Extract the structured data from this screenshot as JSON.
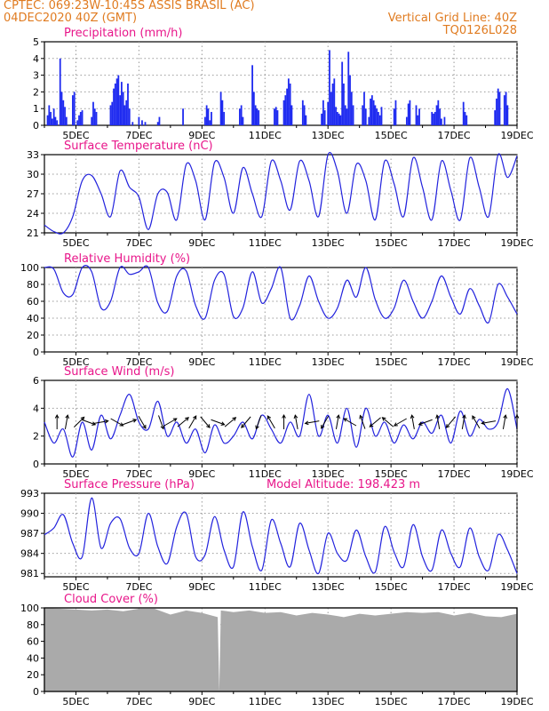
{
  "header": {
    "line1_left": "CPTEC:   069:23W-10:45S   ASSIS BRASIL (AC)",
    "line2_left": "04DEC2020 40Z (GMT)",
    "line2_right": "Vertical Grid Line: 40Z",
    "line3_right": "TQ0126L028"
  },
  "colors": {
    "header": "#e07b20",
    "title": "#e8168a",
    "line": "#2222dd",
    "bar": "#1f2bf0",
    "cloud": "#aaaaaa",
    "arrow": "#000000"
  },
  "x_axis": {
    "start_day": 4,
    "end_day": 19,
    "tick_labels": [
      "5DEC",
      "7DEC",
      "9DEC",
      "11DEC",
      "13DEC",
      "15DEC",
      "17DEC",
      "19DEC"
    ],
    "tick_days": [
      5,
      7,
      9,
      11,
      13,
      15,
      17,
      19
    ]
  },
  "chart_data": [
    {
      "id": "precip",
      "type": "bar",
      "title": "Precipitation (mm/h)",
      "ylim": [
        0,
        5
      ],
      "yticks": [
        "0",
        "1",
        "2",
        "3",
        "4",
        "5"
      ],
      "x": [
        4.1,
        4.15,
        4.2,
        4.25,
        4.3,
        4.35,
        4.4,
        4.5,
        4.55,
        4.6,
        4.65,
        4.7,
        4.9,
        4.95,
        5.05,
        5.1,
        5.15,
        5.2,
        5.5,
        5.55,
        5.6,
        5.65,
        6.1,
        6.15,
        6.2,
        6.25,
        6.3,
        6.35,
        6.4,
        6.45,
        6.5,
        6.55,
        6.6,
        6.65,
        6.7,
        6.8,
        7.0,
        7.1,
        7.2,
        7.6,
        7.65,
        8.4,
        9.1,
        9.15,
        9.2,
        9.25,
        9.3,
        9.6,
        9.65,
        9.7,
        10.2,
        10.25,
        10.3,
        10.6,
        10.65,
        10.7,
        10.75,
        10.8,
        11.3,
        11.35,
        11.4,
        11.6,
        11.65,
        11.7,
        11.75,
        11.8,
        11.85,
        12.2,
        12.25,
        12.3,
        12.8,
        12.85,
        12.9,
        13.0,
        13.05,
        13.1,
        13.15,
        13.2,
        13.25,
        13.3,
        13.35,
        13.4,
        13.45,
        13.5,
        13.55,
        13.6,
        13.65,
        13.7,
        13.75,
        13.8,
        14.1,
        14.15,
        14.2,
        14.3,
        14.35,
        14.4,
        14.45,
        14.5,
        14.55,
        14.6,
        14.65,
        14.7,
        15.1,
        15.15,
        15.5,
        15.55,
        15.6,
        15.8,
        15.85,
        15.9,
        16.3,
        16.35,
        16.4,
        16.45,
        16.5,
        16.55,
        16.6,
        16.7,
        17.3,
        17.35,
        17.4,
        18.3,
        18.35,
        18.4,
        18.45,
        18.6,
        18.65,
        18.7
      ],
      "values": [
        0.6,
        1.2,
        0.8,
        0.4,
        1.0,
        0.5,
        0.3,
        4.0,
        2.0,
        1.5,
        1.1,
        0.5,
        1.8,
        2.0,
        0.3,
        0.6,
        0.8,
        0.9,
        0.5,
        1.4,
        1.0,
        0.8,
        1.2,
        1.4,
        2.2,
        2.5,
        2.8,
        3.0,
        1.8,
        2.6,
        2.0,
        1.2,
        1.5,
        2.5,
        1.0,
        0.2,
        0.5,
        0.3,
        0.2,
        0.2,
        0.5,
        1.0,
        0.5,
        1.2,
        1.0,
        0.3,
        0.8,
        2.0,
        1.5,
        0.8,
        1.0,
        1.2,
        0.5,
        3.6,
        2.0,
        1.2,
        1.0,
        0.9,
        1.0,
        1.1,
        0.9,
        1.5,
        1.8,
        2.2,
        2.8,
        2.5,
        1.2,
        1.5,
        1.2,
        0.6,
        0.7,
        1.5,
        0.9,
        1.4,
        4.5,
        2.0,
        2.5,
        2.8,
        1.1,
        0.8,
        0.7,
        0.6,
        3.8,
        2.5,
        1.2,
        1.0,
        4.4,
        3.0,
        2.0,
        1.2,
        1.2,
        2.0,
        1.0,
        0.5,
        1.6,
        1.8,
        1.5,
        1.2,
        1.0,
        0.8,
        0.6,
        1.1,
        1.0,
        1.5,
        0.5,
        1.3,
        1.5,
        1.2,
        0.6,
        1.0,
        0.8,
        0.7,
        0.8,
        1.2,
        1.5,
        1.0,
        0.4,
        0.5,
        1.4,
        0.8,
        0.6,
        0.9,
        1.6,
        2.2,
        2.0,
        1.8,
        2.0,
        1.2
      ]
    },
    {
      "id": "temp",
      "type": "line",
      "title": "Surface Temperature (nC)",
      "ylim": [
        21,
        33
      ],
      "yticks": [
        "21",
        "24",
        "27",
        "30",
        "33"
      ],
      "x": [
        4.0,
        4.3,
        4.6,
        4.9,
        5.2,
        5.5,
        5.8,
        6.1,
        6.4,
        6.7,
        7.0,
        7.3,
        7.6,
        7.9,
        8.2,
        8.5,
        8.8,
        9.1,
        9.4,
        9.7,
        10.0,
        10.3,
        10.6,
        10.9,
        11.2,
        11.5,
        11.8,
        12.1,
        12.4,
        12.7,
        13.0,
        13.3,
        13.6,
        13.9,
        14.2,
        14.5,
        14.8,
        15.1,
        15.4,
        15.7,
        16.0,
        16.3,
        16.6,
        16.9,
        17.2,
        17.5,
        17.8,
        18.1,
        18.4,
        18.7,
        19.0
      ],
      "values": [
        22.2,
        21.2,
        21.0,
        23.5,
        29.0,
        29.8,
        27.0,
        23.5,
        30.5,
        28.0,
        26.5,
        21.5,
        27.0,
        27.2,
        23.0,
        31.5,
        29.0,
        23.0,
        31.8,
        29.5,
        24.0,
        31.0,
        27.0,
        23.5,
        32.0,
        29.0,
        24.5,
        32.0,
        29.0,
        23.5,
        33.0,
        30.5,
        24.0,
        31.5,
        29.0,
        23.0,
        32.0,
        28.5,
        23.5,
        32.5,
        28.0,
        23.0,
        32.0,
        27.5,
        23.0,
        32.5,
        28.0,
        23.5,
        33.0,
        29.5,
        32.8
      ]
    },
    {
      "id": "rh",
      "type": "line",
      "title": "Relative Humidity (%)",
      "ylim": [
        0,
        100
      ],
      "yticks": [
        "0",
        "20",
        "40",
        "60",
        "80",
        "100"
      ],
      "x": [
        4.0,
        4.3,
        4.6,
        4.9,
        5.2,
        5.5,
        5.8,
        6.1,
        6.4,
        6.7,
        7.0,
        7.3,
        7.6,
        7.9,
        8.2,
        8.5,
        8.8,
        9.1,
        9.4,
        9.7,
        10.0,
        10.3,
        10.6,
        10.9,
        11.2,
        11.5,
        11.8,
        12.1,
        12.4,
        12.7,
        13.0,
        13.3,
        13.6,
        13.9,
        14.2,
        14.5,
        14.8,
        15.1,
        15.4,
        15.7,
        16.0,
        16.3,
        16.6,
        16.9,
        17.2,
        17.5,
        17.8,
        18.1,
        18.4,
        18.7,
        19.0
      ],
      "values": [
        100,
        98,
        70,
        68,
        100,
        95,
        52,
        60,
        100,
        92,
        95,
        100,
        58,
        48,
        90,
        96,
        55,
        40,
        85,
        92,
        42,
        52,
        95,
        58,
        75,
        100,
        40,
        55,
        90,
        60,
        40,
        52,
        85,
        65,
        100,
        62,
        40,
        52,
        85,
        60,
        40,
        60,
        90,
        65,
        45,
        75,
        55,
        35,
        80,
        65,
        45
      ]
    },
    {
      "id": "wind",
      "type": "line",
      "title": "Surface Wind (m/s)",
      "ylim": [
        0,
        6
      ],
      "yticks": [
        "0",
        "2",
        "4",
        "6"
      ],
      "x": [
        4.0,
        4.3,
        4.6,
        4.9,
        5.2,
        5.5,
        5.8,
        6.1,
        6.4,
        6.7,
        7.0,
        7.3,
        7.6,
        7.9,
        8.2,
        8.5,
        8.8,
        9.1,
        9.4,
        9.7,
        10.0,
        10.3,
        10.6,
        10.9,
        11.2,
        11.5,
        11.8,
        12.1,
        12.4,
        12.7,
        13.0,
        13.3,
        13.6,
        13.9,
        14.2,
        14.5,
        14.8,
        15.1,
        15.4,
        15.7,
        16.0,
        16.3,
        16.6,
        16.9,
        17.2,
        17.5,
        17.8,
        18.1,
        18.4,
        18.7,
        19.0
      ],
      "values": [
        3.0,
        1.5,
        2.5,
        0.5,
        3.0,
        1.0,
        3.5,
        1.8,
        3.5,
        5.0,
        3.0,
        2.5,
        4.5,
        2.0,
        3.0,
        1.5,
        2.5,
        0.8,
        2.8,
        1.5,
        2.0,
        3.0,
        1.8,
        3.5,
        2.5,
        1.5,
        3.0,
        2.0,
        5.0,
        2.0,
        3.5,
        1.5,
        4.0,
        1.2,
        4.0,
        2.0,
        3.0,
        1.5,
        2.8,
        1.8,
        3.0,
        2.2,
        3.5,
        1.5,
        3.8,
        2.0,
        3.2,
        2.5,
        3.0,
        5.4,
        2.5
      ],
      "arrows_x": [
        4.4,
        4.7,
        5.1,
        5.4,
        5.8,
        6.3,
        6.7,
        7.1,
        7.7,
        8.0,
        8.4,
        8.7,
        9.1,
        9.5,
        9.9,
        10.4,
        10.8,
        11.2,
        11.6,
        12.0,
        12.5,
        12.9,
        13.3,
        13.7,
        14.1,
        14.5,
        14.9,
        15.3,
        15.7,
        16.1,
        16.5,
        16.9,
        17.3,
        17.7,
        18.1,
        18.6,
        19.0
      ],
      "arrows_dir": [
        90,
        80,
        45,
        -20,
        10,
        -30,
        20,
        -60,
        -70,
        30,
        40,
        60,
        -50,
        -20,
        40,
        -130,
        -110,
        120,
        90,
        100,
        -170,
        -120,
        80,
        150,
        110,
        -140,
        140,
        -150,
        100,
        -160,
        100,
        -130,
        80,
        120,
        -170,
        80,
        90
      ]
    },
    {
      "id": "pres",
      "type": "line",
      "title": "Surface Pressure (hPa)",
      "subtitle": "Model Altitude: 198.423 m",
      "ylim": [
        980.5,
        993
      ],
      "yticks": [
        "981",
        "984",
        "987",
        "990",
        "993"
      ],
      "x": [
        4.0,
        4.3,
        4.6,
        4.9,
        5.2,
        5.5,
        5.8,
        6.1,
        6.4,
        6.7,
        7.0,
        7.3,
        7.6,
        7.9,
        8.2,
        8.5,
        8.8,
        9.1,
        9.4,
        9.7,
        10.0,
        10.3,
        10.6,
        10.9,
        11.2,
        11.5,
        11.8,
        12.1,
        12.4,
        12.7,
        13.0,
        13.3,
        13.6,
        13.9,
        14.2,
        14.5,
        14.8,
        15.1,
        15.4,
        15.7,
        16.0,
        16.3,
        16.6,
        16.9,
        17.2,
        17.5,
        17.8,
        18.1,
        18.4,
        18.7,
        19.0
      ],
      "values": [
        986.8,
        987.8,
        989.8,
        985.5,
        983.5,
        992.3,
        984.8,
        988.5,
        989.2,
        984.8,
        984.0,
        990.0,
        985.0,
        982.5,
        988.0,
        990.0,
        983.5,
        983.8,
        989.5,
        984.5,
        982.0,
        990.2,
        985.0,
        981.5,
        989.0,
        985.5,
        982.0,
        988.5,
        984.5,
        981.0,
        987.0,
        984.0,
        983.0,
        987.5,
        983.5,
        981.2,
        988.0,
        984.2,
        982.0,
        988.3,
        983.5,
        981.5,
        987.5,
        984.0,
        982.0,
        987.8,
        983.5,
        981.5,
        986.8,
        984.5,
        981.0
      ]
    },
    {
      "id": "cloud",
      "type": "area",
      "title": "Cloud Cover (%)",
      "ylim": [
        0,
        100
      ],
      "yticks": [
        "0",
        "20",
        "40",
        "60",
        "80",
        "100"
      ],
      "x": [
        4.0,
        4.5,
        5.0,
        5.5,
        6.0,
        6.5,
        7.0,
        7.5,
        8.0,
        8.5,
        9.0,
        9.5,
        9.55,
        9.6,
        10.0,
        10.5,
        11.0,
        11.5,
        12.0,
        12.5,
        13.0,
        13.5,
        14.0,
        14.5,
        15.0,
        15.5,
        16.0,
        16.5,
        17.0,
        17.5,
        18.0,
        18.5,
        19.0
      ],
      "values": [
        100,
        99,
        98,
        97,
        98,
        96,
        99,
        99,
        92,
        97,
        94,
        89,
        0,
        97,
        95,
        97,
        94,
        95,
        91,
        94,
        92,
        89,
        93,
        91,
        93,
        95,
        94,
        95,
        91,
        94,
        90,
        89,
        93
      ]
    }
  ]
}
